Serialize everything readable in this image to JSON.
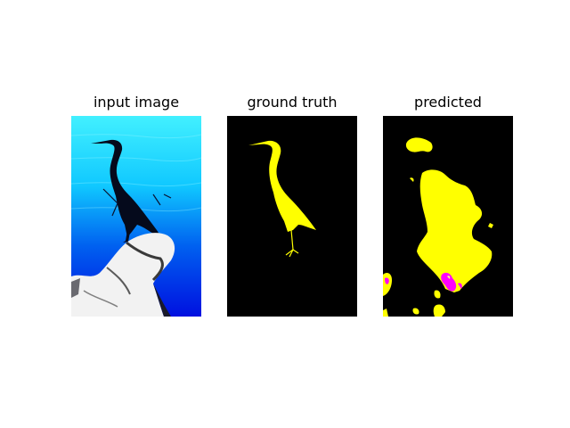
{
  "panels": [
    {
      "title": "input image"
    },
    {
      "title": "ground truth"
    },
    {
      "title": "predicted"
    }
  ],
  "colors": {
    "background": "#ffffff",
    "water_top": "#42f0ff",
    "water_bottom": "#0010e0",
    "mask_background": "#000000",
    "mask_foreground": "#ffff00",
    "prediction_error": "#ff00ff",
    "rock": "#f2f2f2"
  }
}
